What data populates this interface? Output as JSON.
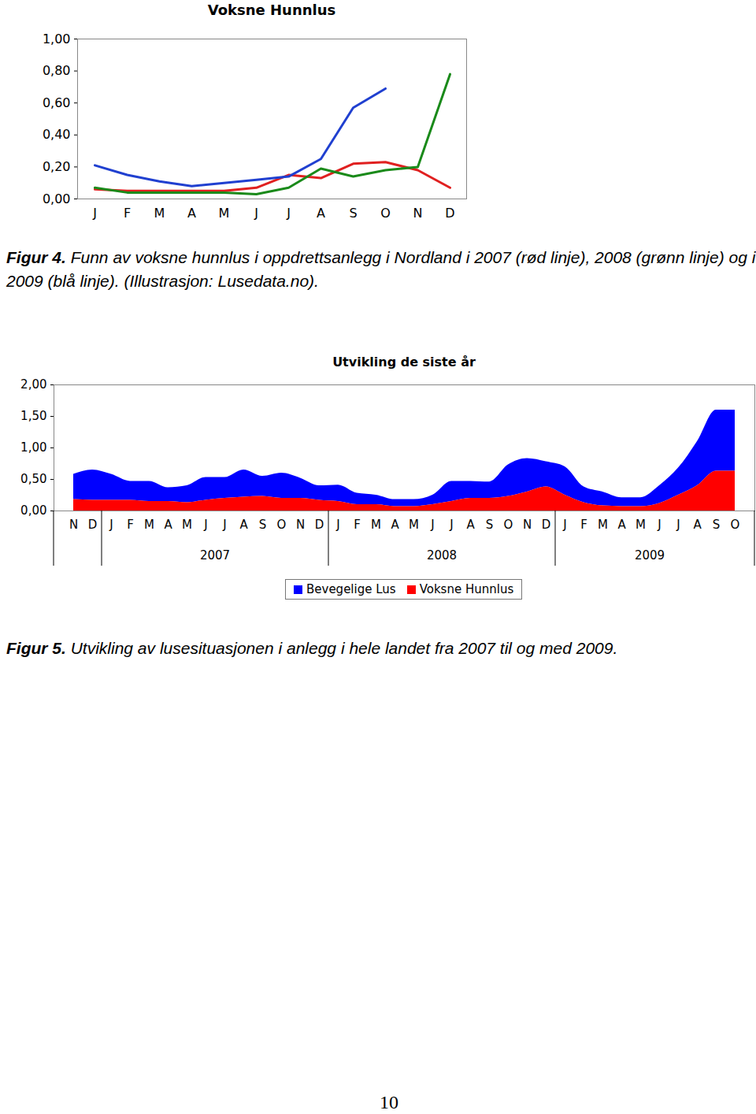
{
  "chart_data": [
    {
      "type": "line",
      "title": "Voksne Hunnlus",
      "categories": [
        "J",
        "F",
        "M",
        "A",
        "M",
        "J",
        "J",
        "A",
        "S",
        "O",
        "N",
        "D"
      ],
      "series": [
        {
          "color": "#e02020",
          "values": [
            0.06,
            0.05,
            0.05,
            0.05,
            0.05,
            0.07,
            0.15,
            0.13,
            0.22,
            0.23,
            0.18,
            0.07
          ]
        },
        {
          "color": "#1a8a1a",
          "values": [
            0.07,
            0.04,
            0.04,
            0.04,
            0.04,
            0.03,
            0.07,
            0.19,
            0.14,
            0.18,
            0.2,
            0.78
          ]
        },
        {
          "color": "#2040d0",
          "values": [
            0.21,
            0.15,
            0.11,
            0.08,
            0.1,
            0.12,
            0.14,
            0.25,
            0.57,
            0.69,
            null,
            null
          ]
        }
      ],
      "ylim": [
        0,
        1
      ],
      "yticks": [
        {
          "value": 0,
          "label": "0,00"
        },
        {
          "value": 0.2,
          "label": "0,20"
        },
        {
          "value": 0.4,
          "label": "0,40"
        },
        {
          "value": 0.6,
          "label": "0,60"
        },
        {
          "value": 0.8,
          "label": "0,80"
        },
        {
          "value": 1,
          "label": "1,00"
        }
      ],
      "grid": false
    },
    {
      "type": "area",
      "title": "Utvikling de siste år",
      "stacked": true,
      "legend": "bottom",
      "grid": false,
      "categories": [
        "N",
        "D",
        "J",
        "F",
        "M",
        "A",
        "M",
        "J",
        "J",
        "A",
        "S",
        "O",
        "N",
        "D",
        "J",
        "F",
        "M",
        "A",
        "M",
        "J",
        "J",
        "A",
        "S",
        "O",
        "N",
        "D",
        "J",
        "F",
        "M",
        "A",
        "M",
        "J",
        "J",
        "A",
        "S",
        "O"
      ],
      "years": [
        null,
        null,
        "2007",
        "2007",
        "2007",
        "2007",
        "2007",
        "2007",
        "2007",
        "2007",
        "2007",
        "2007",
        "2007",
        "2007",
        "2008",
        "2008",
        "2008",
        "2008",
        "2008",
        "2008",
        "2008",
        "2008",
        "2008",
        "2008",
        "2008",
        "2008",
        "2009",
        "2009",
        "2009",
        "2009",
        "2009",
        "2009",
        "2009",
        "2009",
        "2009",
        "2009"
      ],
      "series": [
        {
          "name": "Bevegelige Lus",
          "color": "#0000ff",
          "values": [
            0.4,
            0.48,
            0.41,
            0.3,
            0.32,
            0.22,
            0.27,
            0.36,
            0.33,
            0.43,
            0.32,
            0.4,
            0.32,
            0.23,
            0.26,
            0.18,
            0.15,
            0.11,
            0.11,
            0.15,
            0.32,
            0.27,
            0.26,
            0.5,
            0.53,
            0.4,
            0.45,
            0.25,
            0.22,
            0.14,
            0.14,
            0.28,
            0.43,
            0.7,
            0.97,
            0.97
          ]
        },
        {
          "name": "Voksne Hunnlus",
          "color": "#ff0000",
          "values": [
            0.18,
            0.17,
            0.17,
            0.17,
            0.15,
            0.15,
            0.13,
            0.17,
            0.2,
            0.22,
            0.23,
            0.2,
            0.2,
            0.17,
            0.15,
            0.1,
            0.1,
            0.07,
            0.07,
            0.1,
            0.15,
            0.2,
            0.2,
            0.23,
            0.3,
            0.38,
            0.25,
            0.13,
            0.08,
            0.07,
            0.07,
            0.12,
            0.25,
            0.4,
            0.63,
            0.63
          ]
        }
      ],
      "ylim": [
        0,
        2
      ],
      "yticks": [
        {
          "value": 0,
          "label": "0,00"
        },
        {
          "value": 0.5,
          "label": "0,50"
        },
        {
          "value": 1,
          "label": "1,00"
        },
        {
          "value": 1.5,
          "label": "1,50"
        },
        {
          "value": 2,
          "label": "2,00"
        }
      ]
    }
  ],
  "captions": [
    {
      "label": "Figur 4.",
      "text": "Funn av voksne hunnlus i oppdrettsanlegg i Nordland i 2007 (rød linje), 2008 (grønn linje) og i 2009 (blå linje). (Illustrasjon: Lusedata.no)."
    },
    {
      "label": "Figur 5.",
      "text": "Utvikling av lusesituasjonen i anlegg i hele landet fra 2007 til og med 2009."
    }
  ],
  "page_number": "10"
}
